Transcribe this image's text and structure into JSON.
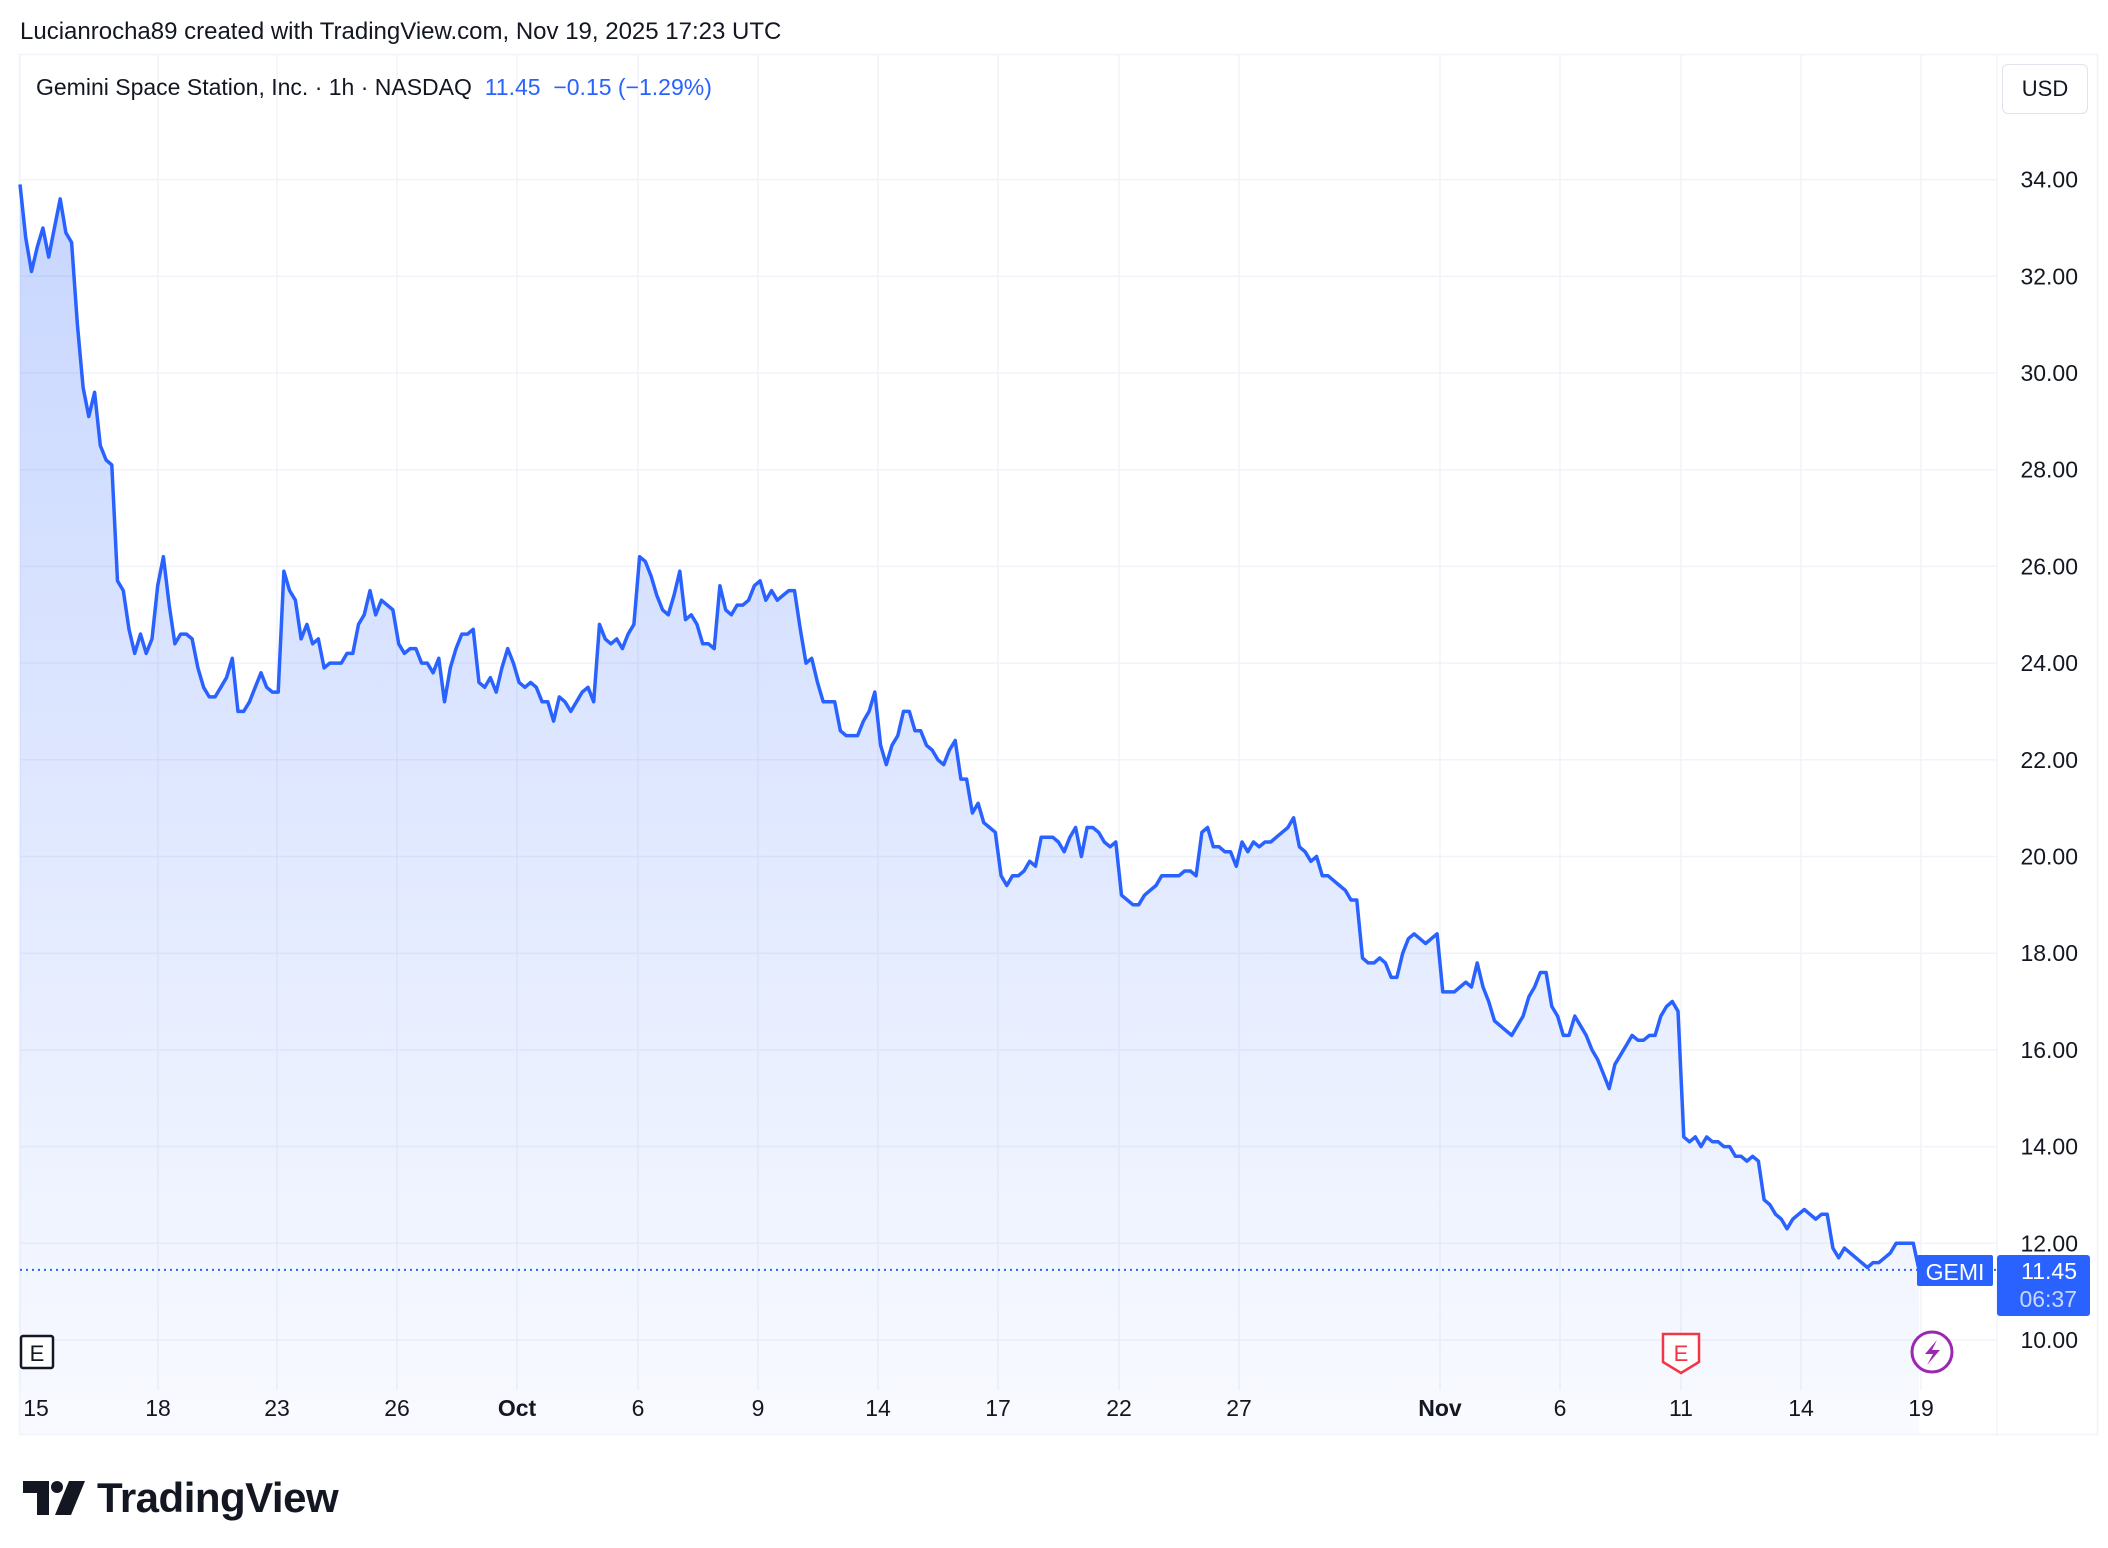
{
  "header": {
    "attribution": "Lucianrocha89 created with TradingView.com, Nov 19, 2025 17:23 UTC"
  },
  "legend": {
    "name": "Gemini Space Station, Inc. · 1h · NASDAQ",
    "last": "11.45",
    "change": "−0.15 (−1.29%)"
  },
  "currency": "USD",
  "price_tag": {
    "symbol": "GEMI",
    "price": "11.45",
    "countdown": "06:37"
  },
  "markers": {
    "earnings_label": "E",
    "dividend_icon": "lightning-icon"
  },
  "logo": {
    "text": "TradingView"
  },
  "colors": {
    "line": "#2962ff",
    "earnings_red": "#f23645",
    "event_purple": "#9c27b0"
  },
  "chart_data": {
    "type": "area",
    "title": "Gemini Space Station, Inc. · 1h · NASDAQ",
    "symbol": "GEMI",
    "ylabel": "USD",
    "ylim": [
      10,
      34.9
    ],
    "yticks": [
      "34.00",
      "32.00",
      "30.00",
      "28.00",
      "26.00",
      "24.00",
      "22.00",
      "20.00",
      "18.00",
      "16.00",
      "14.00",
      "12.00",
      "10.00"
    ],
    "xticks": [
      "15",
      "18",
      "23",
      "26",
      "Oct",
      "6",
      "9",
      "14",
      "17",
      "22",
      "27",
      "Nov",
      "6",
      "11",
      "14",
      "19"
    ],
    "grid": true,
    "last_price": 11.45,
    "values": [
      33.9,
      32.8,
      32.1,
      32.6,
      33.0,
      32.4,
      33.0,
      33.6,
      32.9,
      32.7,
      31.0,
      29.7,
      29.1,
      29.6,
      28.5,
      28.2,
      28.1,
      25.7,
      25.5,
      24.7,
      24.2,
      24.6,
      24.2,
      24.5,
      25.6,
      26.2,
      25.2,
      24.4,
      24.6,
      24.6,
      24.5,
      23.9,
      23.5,
      23.3,
      23.3,
      23.5,
      23.7,
      24.1,
      23.0,
      23.0,
      23.2,
      23.5,
      23.8,
      23.5,
      23.4,
      23.4,
      25.9,
      25.5,
      25.3,
      24.5,
      24.8,
      24.4,
      24.5,
      23.9,
      24.0,
      24.0,
      24.0,
      24.2,
      24.2,
      24.8,
      25.0,
      25.5,
      25.0,
      25.3,
      25.2,
      25.1,
      24.4,
      24.2,
      24.3,
      24.3,
      24.0,
      24.0,
      23.8,
      24.1,
      23.2,
      23.9,
      24.3,
      24.6,
      24.6,
      24.7,
      23.6,
      23.5,
      23.7,
      23.4,
      23.9,
      24.3,
      24.0,
      23.6,
      23.5,
      23.6,
      23.5,
      23.2,
      23.2,
      22.8,
      23.3,
      23.2,
      23.0,
      23.2,
      23.4,
      23.5,
      23.2,
      24.8,
      24.5,
      24.4,
      24.5,
      24.3,
      24.6,
      24.8,
      26.2,
      26.1,
      25.8,
      25.4,
      25.1,
      25.0,
      25.4,
      25.9,
      24.9,
      25.0,
      24.8,
      24.4,
      24.4,
      24.3,
      25.6,
      25.1,
      25.0,
      25.2,
      25.2,
      25.3,
      25.6,
      25.7,
      25.3,
      25.5,
      25.3,
      25.4,
      25.5,
      25.5,
      24.7,
      24.0,
      24.1,
      23.6,
      23.2,
      23.2,
      23.2,
      22.6,
      22.5,
      22.5,
      22.5,
      22.8,
      23.0,
      23.4,
      22.3,
      21.9,
      22.3,
      22.5,
      23.0,
      23.0,
      22.6,
      22.6,
      22.3,
      22.2,
      22.0,
      21.9,
      22.2,
      22.4,
      21.6,
      21.6,
      20.9,
      21.1,
      20.7,
      20.6,
      20.5,
      19.6,
      19.4,
      19.6,
      19.6,
      19.7,
      19.9,
      19.8,
      20.4,
      20.4,
      20.4,
      20.3,
      20.1,
      20.4,
      20.6,
      20.0,
      20.6,
      20.6,
      20.5,
      20.3,
      20.2,
      20.3,
      19.2,
      19.1,
      19.0,
      19.0,
      19.2,
      19.3,
      19.4,
      19.6,
      19.6,
      19.6,
      19.6,
      19.7,
      19.7,
      19.6,
      20.5,
      20.6,
      20.2,
      20.2,
      20.1,
      20.1,
      19.8,
      20.3,
      20.1,
      20.3,
      20.2,
      20.3,
      20.3,
      20.4,
      20.5,
      20.6,
      20.8,
      20.2,
      20.1,
      19.9,
      20.0,
      19.6,
      19.6,
      19.5,
      19.4,
      19.3,
      19.1,
      19.1,
      17.9,
      17.8,
      17.8,
      17.9,
      17.8,
      17.5,
      17.5,
      18.0,
      18.3,
      18.4,
      18.3,
      18.2,
      18.3,
      18.4,
      17.2,
      17.2,
      17.2,
      17.3,
      17.4,
      17.3,
      17.8,
      17.3,
      17.0,
      16.6,
      16.5,
      16.4,
      16.3,
      16.5,
      16.7,
      17.1,
      17.3,
      17.6,
      17.6,
      16.9,
      16.7,
      16.3,
      16.3,
      16.7,
      16.5,
      16.3,
      16.0,
      15.8,
      15.5,
      15.2,
      15.7,
      15.9,
      16.1,
      16.3,
      16.2,
      16.2,
      16.3,
      16.3,
      16.7,
      16.9,
      17.0,
      16.8,
      14.2,
      14.1,
      14.2,
      14.0,
      14.2,
      14.1,
      14.1,
      14.0,
      14.0,
      13.8,
      13.8,
      13.7,
      13.8,
      13.7,
      12.9,
      12.8,
      12.6,
      12.5,
      12.3,
      12.5,
      12.6,
      12.7,
      12.6,
      12.5,
      12.6,
      12.6,
      11.9,
      11.7,
      11.9,
      11.8,
      11.7,
      11.6,
      11.5,
      11.6,
      11.6,
      11.7,
      11.8,
      12.0,
      12.0,
      12.0,
      12.0,
      11.45
    ]
  }
}
